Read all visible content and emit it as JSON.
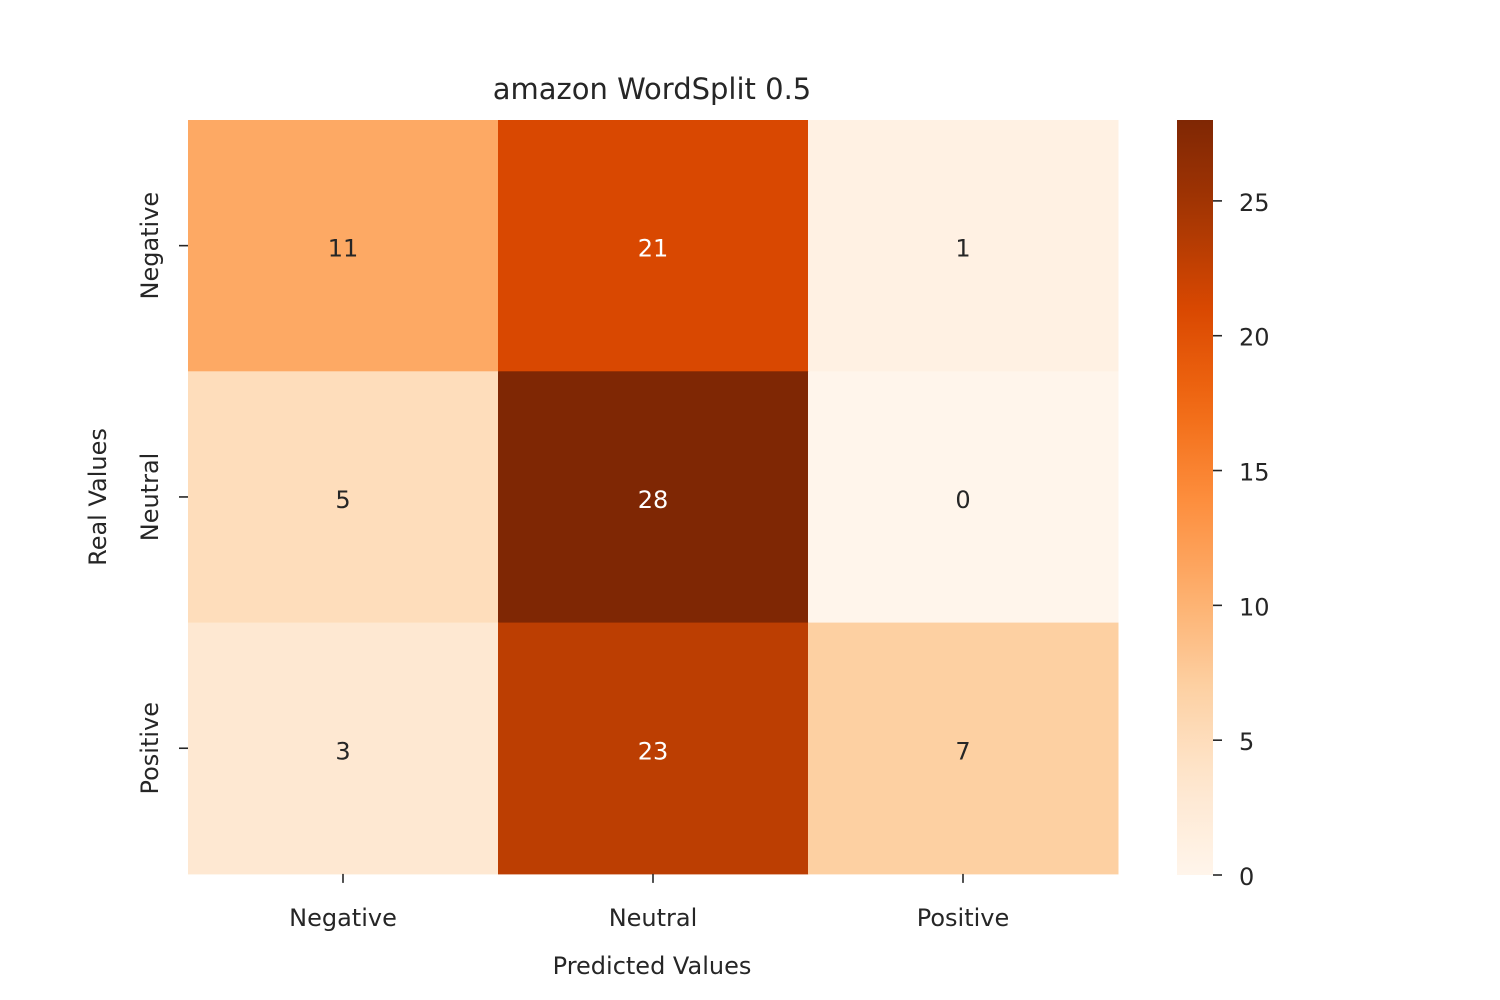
{
  "chart_data": {
    "type": "heatmap",
    "title": "amazon WordSplit 0.5",
    "xlabel": "Predicted Values",
    "ylabel": "Real Values",
    "x_categories": [
      "Negative",
      "Neutral",
      "Positive"
    ],
    "y_categories": [
      "Negative",
      "Neutral",
      "Positive"
    ],
    "values": [
      [
        11,
        21,
        1
      ],
      [
        5,
        28,
        0
      ],
      [
        3,
        23,
        7
      ]
    ],
    "colormap": "Oranges",
    "colorbar": {
      "min": 0,
      "max": 28,
      "ticks": [
        "0",
        "5",
        "10",
        "15",
        "20",
        "25"
      ]
    },
    "grid": false
  }
}
